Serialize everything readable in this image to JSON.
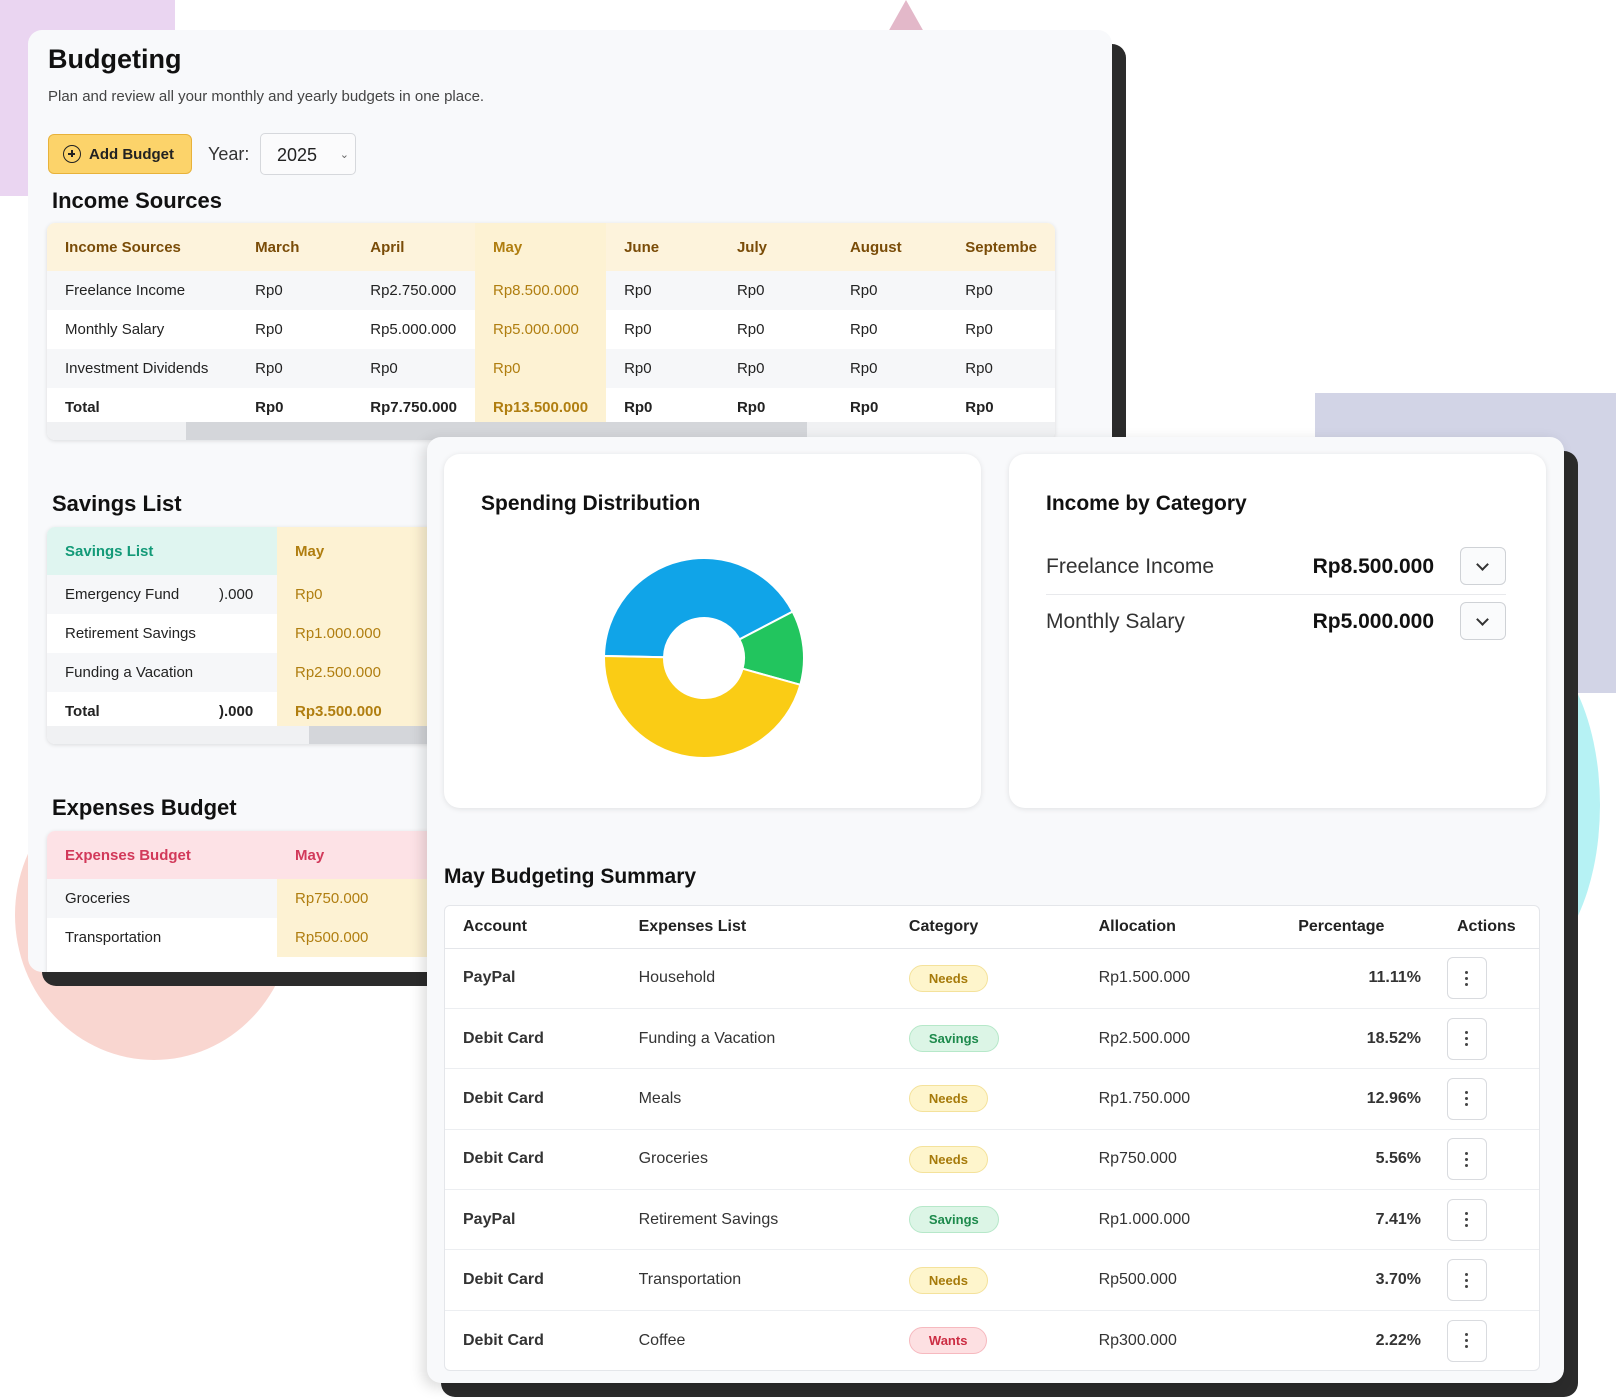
{
  "header": {
    "title": "Budgeting",
    "subtitle": "Plan and review all your monthly and yearly budgets in one place.",
    "add_budget_label": "Add Budget",
    "year_label": "Year:",
    "year_value": "2025"
  },
  "income_sources": {
    "section_title": "Income Sources",
    "columns": [
      "Income Sources",
      "March",
      "April",
      "May",
      "June",
      "July",
      "August",
      "Septembe"
    ],
    "rows": [
      [
        "Freelance Income",
        "Rp0",
        "Rp2.750.000",
        "Rp8.500.000",
        "Rp0",
        "Rp0",
        "Rp0",
        "Rp0"
      ],
      [
        "Monthly Salary",
        "Rp0",
        "Rp5.000.000",
        "Rp5.000.000",
        "Rp0",
        "Rp0",
        "Rp0",
        "Rp0"
      ],
      [
        "Investment Dividends",
        "Rp0",
        "Rp0",
        "Rp0",
        "Rp0",
        "Rp0",
        "Rp0",
        "Rp0"
      ],
      [
        "Total",
        "Rp0",
        "Rp7.750.000",
        "Rp13.500.000",
        "Rp0",
        "Rp0",
        "Rp0",
        "Rp0"
      ]
    ]
  },
  "savings_list": {
    "section_title": "Savings List",
    "columns": [
      "Savings List",
      "",
      "May"
    ],
    "rows": [
      [
        "Emergency Fund",
        ").000",
        "Rp0"
      ],
      [
        "Retirement Savings",
        "",
        "Rp1.000.000"
      ],
      [
        "Funding a Vacation",
        "",
        "Rp2.500.000"
      ],
      [
        "Total",
        ").000",
        "Rp3.500.000"
      ]
    ]
  },
  "expenses_budget": {
    "section_title": "Expenses Budget",
    "columns": [
      "Expenses Budget",
      "May"
    ],
    "rows": [
      [
        "Groceries",
        "Rp750.000"
      ],
      [
        "Transportation",
        "Rp500.000"
      ]
    ]
  },
  "spending_distribution": {
    "title": "Spending Distribution"
  },
  "chart_data": {
    "type": "pie",
    "title": "Spending Distribution",
    "slices": [
      {
        "value": 42,
        "color": "#10a4e8"
      },
      {
        "value": 12,
        "color": "#22c55e"
      },
      {
        "value": 46,
        "color": "#facc15"
      }
    ]
  },
  "income_by_category": {
    "title": "Income by Category",
    "items": [
      {
        "name": "Freelance Income",
        "amount": "Rp8.500.000"
      },
      {
        "name": "Monthly Salary",
        "amount": "Rp5.000.000"
      }
    ]
  },
  "summary": {
    "title": "May Budgeting Summary",
    "columns": [
      "Account",
      "Expenses List",
      "Category",
      "Allocation",
      "Percentage",
      "Actions"
    ],
    "rows": [
      {
        "account": "PayPal",
        "expense": "Household",
        "category": "Needs",
        "allocation": "Rp1.500.000",
        "percentage": "11.11%"
      },
      {
        "account": "Debit Card",
        "expense": "Funding a Vacation",
        "category": "Savings",
        "allocation": "Rp2.500.000",
        "percentage": "18.52%"
      },
      {
        "account": "Debit Card",
        "expense": "Meals",
        "category": "Needs",
        "allocation": "Rp1.750.000",
        "percentage": "12.96%"
      },
      {
        "account": "Debit Card",
        "expense": "Groceries",
        "category": "Needs",
        "allocation": "Rp750.000",
        "percentage": "5.56%"
      },
      {
        "account": "PayPal",
        "expense": "Retirement Savings",
        "category": "Savings",
        "allocation": "Rp1.000.000",
        "percentage": "7.41%"
      },
      {
        "account": "Debit Card",
        "expense": "Transportation",
        "category": "Needs",
        "allocation": "Rp500.000",
        "percentage": "3.70%"
      },
      {
        "account": "Debit Card",
        "expense": "Coffee",
        "category": "Wants",
        "allocation": "Rp300.000",
        "percentage": "2.22%"
      }
    ]
  }
}
